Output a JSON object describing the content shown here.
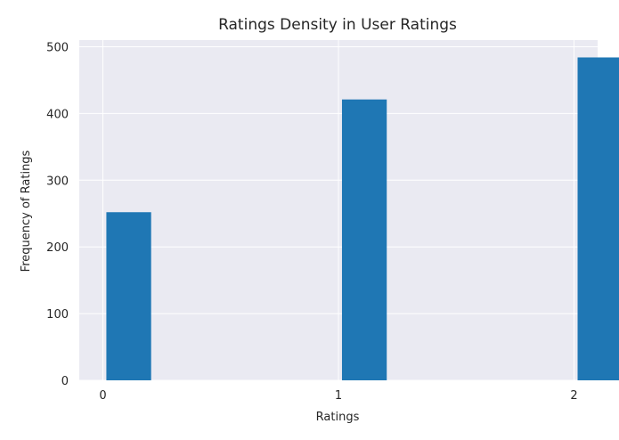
{
  "chart_data": {
    "type": "bar",
    "title": "Ratings Density in User Ratings",
    "xlabel": "Ratings",
    "ylabel": "Frequency of Ratings",
    "bars": [
      {
        "x": 0,
        "value": 252
      },
      {
        "x": 1,
        "value": 421
      },
      {
        "x": 2,
        "value": 484
      }
    ],
    "xticks": [
      0,
      1,
      2
    ],
    "yticks": [
      0,
      100,
      200,
      300,
      400,
      500
    ],
    "ylim": [
      0,
      510
    ],
    "xlim": [
      -0.1,
      2.1
    ],
    "bar_width": 0.19,
    "grid": true,
    "colors": {
      "bar": "#1f77b4",
      "plot_background": "#eaeaf2",
      "grid": "#ffffff",
      "text": "#262626"
    }
  }
}
